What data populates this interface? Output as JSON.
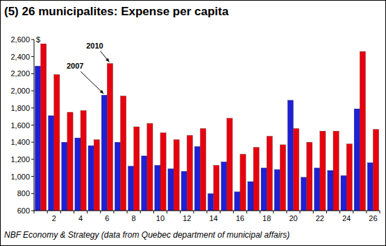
{
  "chart_data": {
    "type": "bar",
    "title": "(5) 26 municipalites: Expense per capita",
    "source": "NBF Economy & Strategy (data from Quebec department of municipal affairs)",
    "y_unit": "$",
    "categories": [
      null,
      "2",
      null,
      "4",
      null,
      "6",
      null,
      "8",
      null,
      "10",
      null,
      "12",
      null,
      "14",
      null,
      "16",
      null,
      "18",
      null,
      "20",
      null,
      "22",
      null,
      "24",
      null,
      "26"
    ],
    "series": [
      {
        "name": "2007",
        "color": "#1f1fd6",
        "values": [
          2290,
          1710,
          1400,
          1450,
          1360,
          1950,
          1400,
          1120,
          1240,
          1130,
          1090,
          1060,
          1350,
          800,
          1170,
          820,
          940,
          1100,
          1080,
          1890,
          990,
          1100,
          1070,
          1010,
          1790,
          1160
        ]
      },
      {
        "name": "2010",
        "color": "#e8000e",
        "values": [
          2550,
          2190,
          1750,
          1770,
          1430,
          2320,
          1940,
          1580,
          1620,
          1510,
          1430,
          1480,
          1560,
          1130,
          1680,
          1260,
          1340,
          1470,
          1370,
          1560,
          1400,
          1530,
          1530,
          1380,
          2460,
          1550
        ]
      }
    ],
    "ylim": [
      600,
      2600
    ],
    "yticks": [
      600,
      800,
      {
        "value": 1000,
        "label": "1,000"
      },
      {
        "value": 1200,
        "label": "1,200"
      },
      {
        "value": 1400,
        "label": "1,400"
      },
      {
        "value": 1600,
        "label": "1,600"
      },
      {
        "value": 1800,
        "label": "1,800"
      },
      {
        "value": 2000,
        "label": "2,000"
      },
      {
        "value": 2200,
        "label": "2,200"
      },
      {
        "value": 2400,
        "label": "2,400"
      },
      {
        "value": 2600,
        "label": "2,600"
      }
    ],
    "grid": false
  }
}
